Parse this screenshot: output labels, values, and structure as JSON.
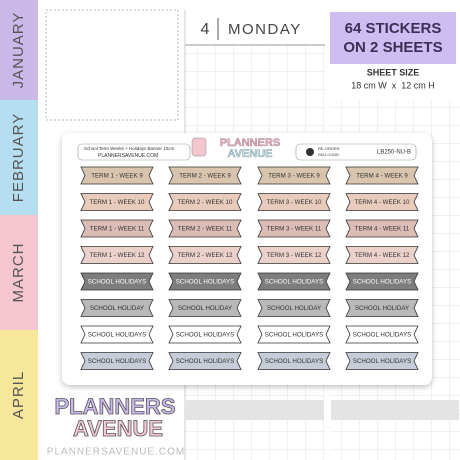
{
  "tabs": [
    "JANUARY",
    "FEBRUARY",
    "MARCH",
    "APRIL"
  ],
  "planner": {
    "day_number": "4",
    "day_name": "MONDAY"
  },
  "product": {
    "badge": [
      "64 STICKERS",
      "ON 2 SHEETS"
    ],
    "size_title": "SHEET SIZE",
    "size_value": "18 cm W  x  12 cm H"
  },
  "sheet": {
    "title": "School Term Weeks + Holidays Banner 10cm",
    "website": "PLANNERSAVENUE.COM",
    "logo": [
      "PLANNERS",
      "AVENUE"
    ],
    "reorder": [
      "RE-ORDER",
      "SKU CODE:"
    ],
    "sku": "LB250-NU-B",
    "rows": [
      {
        "color": "#d9c4ae",
        "labels": [
          "TERM 1 - WEEK 9",
          "TERM 2 - WEEK 9",
          "TERM 3 - WEEK 9",
          "TERM 4 - WEEK 9"
        ]
      },
      {
        "color": "#e8cbbb",
        "labels": [
          "TERM 1 - WEEK 10",
          "TERM 2 - WEEK 10",
          "TERM 3 - WEEK 10",
          "TERM 4 - WEEK 10"
        ]
      },
      {
        "color": "#dcbdb6",
        "labels": [
          "TERM 1 - WEEK 11",
          "TERM 2 - WEEK 11",
          "TERM 3 - WEEK 11",
          "TERM 4 - WEEK 11"
        ]
      },
      {
        "color": "#ecd0ca",
        "labels": [
          "TERM 1 - WEEK 12",
          "TERM 2 - WEEK 12",
          "TERM 3 - WEEK 12",
          "TERM 4 - WEEK 12"
        ]
      },
      {
        "color": "#7d7d7d",
        "labels": [
          "SCHOOL HOLIDAYS",
          "SCHOOL HOLIDAYS",
          "SCHOOL HOLIDAYS",
          "SCHOOL HOLIDAYS"
        ]
      },
      {
        "color": "#b9b9b9",
        "labels": [
          "SCHOOL HOLIDAY",
          "SCHOOL HOLIDAY",
          "SCHOOL HOLIDAY",
          "SCHOOL HOLIDAY"
        ]
      },
      {
        "color": "#ffffff",
        "labels": [
          "SCHOOL HOLIDAYS",
          "SCHOOL HOLIDAYS",
          "SCHOOL HOLIDAYS",
          "SCHOOL HOLIDAYS"
        ]
      },
      {
        "color": "#c7ccd9",
        "labels": [
          "SCHOOL HOLIDAYS",
          "SCHOOL HOLIDAYS",
          "SCHOOL HOLIDAYS",
          "SCHOOL HOLIDAYS"
        ]
      }
    ]
  },
  "footer": {
    "logo": [
      "PLANNERS",
      "AVENUE"
    ],
    "website": "PLANNERSAVENUE.COM"
  }
}
